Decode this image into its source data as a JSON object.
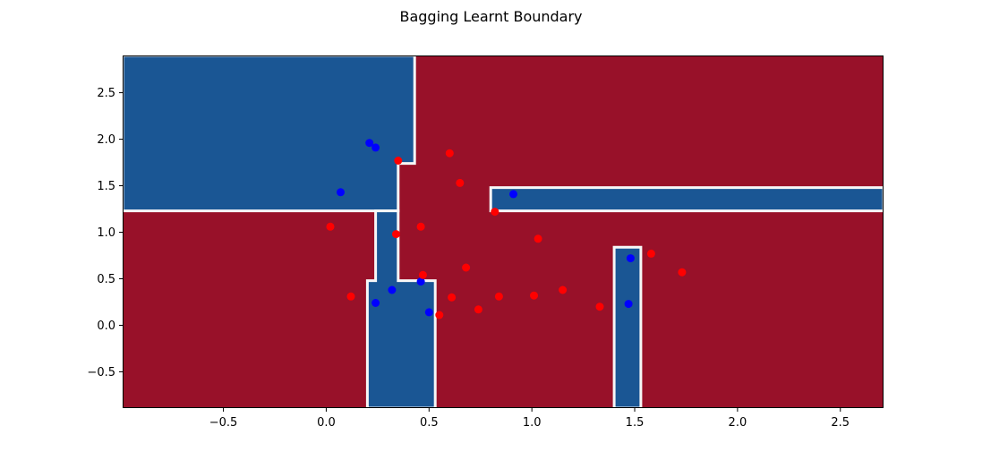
{
  "chart_data": {
    "type": "heatmap",
    "title": "Bagging Learnt Boundary",
    "xlabel": "",
    "ylabel": "",
    "xlim": [
      -0.99,
      2.71
    ],
    "ylim": [
      -0.89,
      2.9
    ],
    "grid": false,
    "legend": "none",
    "colors": {
      "class_0_region": "#1a5694",
      "class_1_region": "#981129",
      "boundary": "#f7f7f7",
      "class_0_points": "#0000ff",
      "class_1_points": "#ff0000"
    },
    "x_ticks": [
      {
        "value": -0.5,
        "label": "−0.5"
      },
      {
        "value": 0.0,
        "label": "0.0"
      },
      {
        "value": 0.5,
        "label": "0.5"
      },
      {
        "value": 1.0,
        "label": "1.0"
      },
      {
        "value": 1.5,
        "label": "1.5"
      },
      {
        "value": 2.0,
        "label": "2.0"
      },
      {
        "value": 2.5,
        "label": "2.5"
      }
    ],
    "y_ticks": [
      {
        "value": -0.5,
        "label": "−0.5"
      },
      {
        "value": 0.0,
        "label": "0.0"
      },
      {
        "value": 0.5,
        "label": "0.5"
      },
      {
        "value": 1.0,
        "label": "1.0"
      },
      {
        "value": 1.5,
        "label": "1.5"
      },
      {
        "value": 2.0,
        "label": "2.0"
      },
      {
        "value": 2.5,
        "label": "2.5"
      }
    ],
    "regions": [
      {
        "class": 0,
        "polygon": [
          [
            -0.99,
            2.9
          ],
          [
            0.43,
            2.9
          ],
          [
            0.43,
            1.74
          ],
          [
            0.35,
            1.74
          ],
          [
            0.35,
            1.23
          ],
          [
            -0.99,
            1.23
          ]
        ]
      },
      {
        "class": 0,
        "polygon": [
          [
            0.2,
            -0.89
          ],
          [
            0.53,
            -0.89
          ],
          [
            0.53,
            0.48
          ],
          [
            0.35,
            0.48
          ],
          [
            0.35,
            1.23
          ],
          [
            0.24,
            1.23
          ],
          [
            0.24,
            0.48
          ],
          [
            0.2,
            0.48
          ]
        ]
      },
      {
        "class": 0,
        "polygon": [
          [
            0.8,
            1.48
          ],
          [
            2.71,
            1.48
          ],
          [
            2.71,
            1.23
          ],
          [
            0.8,
            1.23
          ]
        ]
      },
      {
        "class": 0,
        "polygon": [
          [
            1.4,
            -0.89
          ],
          [
            1.53,
            -0.89
          ],
          [
            1.53,
            0.84
          ],
          [
            1.4,
            0.84
          ]
        ]
      }
    ],
    "series": [
      {
        "class": 0,
        "points": [
          [
            0.21,
            1.96
          ],
          [
            0.24,
            1.91
          ],
          [
            0.07,
            1.43
          ],
          [
            0.91,
            1.41
          ],
          [
            0.46,
            0.47
          ],
          [
            0.32,
            0.38
          ],
          [
            0.24,
            0.24
          ],
          [
            0.5,
            0.14
          ],
          [
            1.48,
            0.72
          ],
          [
            1.47,
            0.23
          ]
        ]
      },
      {
        "class": 1,
        "points": [
          [
            0.6,
            1.85
          ],
          [
            0.35,
            1.77
          ],
          [
            0.65,
            1.53
          ],
          [
            0.82,
            1.22
          ],
          [
            0.02,
            1.06
          ],
          [
            0.46,
            1.06
          ],
          [
            0.34,
            0.98
          ],
          [
            1.03,
            0.93
          ],
          [
            1.58,
            0.77
          ],
          [
            0.68,
            0.62
          ],
          [
            1.73,
            0.57
          ],
          [
            0.47,
            0.54
          ],
          [
            0.12,
            0.31
          ],
          [
            0.61,
            0.3
          ],
          [
            0.84,
            0.31
          ],
          [
            1.01,
            0.32
          ],
          [
            1.15,
            0.38
          ],
          [
            1.33,
            0.2
          ],
          [
            0.74,
            0.17
          ],
          [
            0.55,
            0.11
          ]
        ]
      }
    ]
  }
}
